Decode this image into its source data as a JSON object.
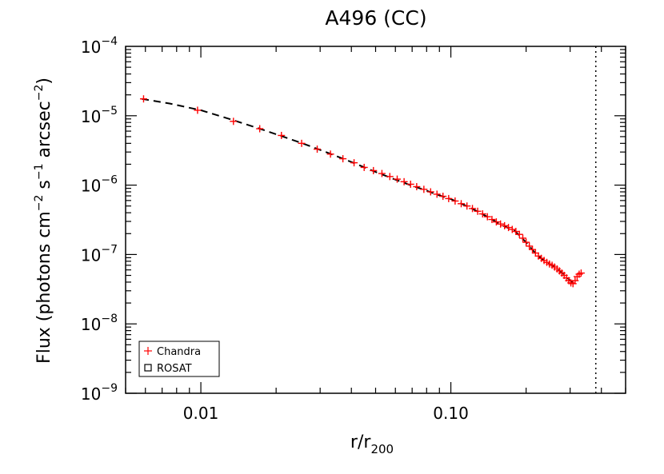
{
  "chart_data": {
    "type": "scatter",
    "title": "A496 (CC)",
    "xlabel": {
      "main": "r/r",
      "sub": "200"
    },
    "ylabel": {
      "parts": [
        {
          "t": "Flux (photons cm",
          "sup": false
        },
        {
          "t": "−2",
          "sup": true
        },
        {
          "t": " s",
          "sup": false
        },
        {
          "t": "−1",
          "sup": true
        },
        {
          "t": " arcsec",
          "sup": false
        },
        {
          "t": "−2",
          "sup": true
        },
        {
          "t": ")",
          "sup": false
        }
      ]
    },
    "x_scale": "log",
    "y_scale": "log",
    "xlim": [
      0.005,
      0.5
    ],
    "ylim": [
      1e-09,
      0.0001
    ],
    "x_ticks": [
      {
        "value": 0.01,
        "label": "0.01"
      },
      {
        "value": 0.1,
        "label": "0.10"
      }
    ],
    "y_ticks": [
      {
        "value": 1e-09,
        "base": "10",
        "exp": "−9"
      },
      {
        "value": 1e-08,
        "base": "10",
        "exp": "−8"
      },
      {
        "value": 1e-07,
        "base": "10",
        "exp": "−7"
      },
      {
        "value": 1e-06,
        "base": "10",
        "exp": "−6"
      },
      {
        "value": 1e-05,
        "base": "10",
        "exp": "−5"
      },
      {
        "value": 0.0001,
        "base": "10",
        "exp": "−4"
      }
    ],
    "vertical_line_x": 0.38,
    "colors": {
      "chandra": "#ff0000",
      "rosat": "#000000",
      "model": "#000000"
    },
    "legend": {
      "position": "bottom-left",
      "entries": [
        {
          "label": "Chandra",
          "marker": "plus",
          "color": "#ff0000"
        },
        {
          "label": "ROSAT",
          "marker": "square",
          "color": "#000000"
        }
      ]
    },
    "series": [
      {
        "name": "Chandra",
        "marker": "plus",
        "points": [
          [
            0.0059,
            1.75e-05
          ],
          [
            0.0097,
            1.2e-05
          ],
          [
            0.0135,
            8.3e-06
          ],
          [
            0.0172,
            6.5e-06
          ],
          [
            0.021,
            5.2e-06
          ],
          [
            0.0253,
            4e-06
          ],
          [
            0.0292,
            3.3e-06
          ],
          [
            0.033,
            2.8e-06
          ],
          [
            0.037,
            2.4e-06
          ],
          [
            0.041,
            2.1e-06
          ],
          [
            0.045,
            1.8e-06
          ],
          [
            0.049,
            1.62e-06
          ],
          [
            0.053,
            1.47e-06
          ],
          [
            0.057,
            1.33e-06
          ],
          [
            0.061,
            1.22e-06
          ],
          [
            0.065,
            1.12e-06
          ],
          [
            0.069,
            1.03e-06
          ],
          [
            0.073,
            9.5e-07
          ],
          [
            0.078,
            8.7e-07
          ],
          [
            0.083,
            8e-07
          ],
          [
            0.088,
            7.4e-07
          ],
          [
            0.093,
            6.9e-07
          ],
          [
            0.098,
            6.4e-07
          ],
          [
            0.104,
            5.9e-07
          ],
          [
            0.11,
            5.4e-07
          ],
          [
            0.116,
            5e-07
          ],
          [
            0.122,
            4.6e-07
          ],
          [
            0.128,
            4.2e-07
          ],
          [
            0.134,
            3.85e-07
          ],
          [
            0.14,
            3.5e-07
          ],
          [
            0.146,
            3.2e-07
          ],
          [
            0.152,
            2.95e-07
          ],
          [
            0.158,
            2.75e-07
          ],
          [
            0.164,
            2.6e-07
          ],
          [
            0.17,
            2.45e-07
          ],
          [
            0.176,
            2.3e-07
          ],
          [
            0.182,
            2.15e-07
          ],
          [
            0.188,
            1.95e-07
          ],
          [
            0.194,
            1.72e-07
          ],
          [
            0.2,
            1.5e-07
          ],
          [
            0.206,
            1.32e-07
          ],
          [
            0.212,
            1.18e-07
          ],
          [
            0.218,
            1.05e-07
          ],
          [
            0.224,
            9.5e-08
          ],
          [
            0.23,
            8.8e-08
          ],
          [
            0.236,
            8.2e-08
          ],
          [
            0.242,
            7.7e-08
          ],
          [
            0.248,
            7.3e-08
          ],
          [
            0.254,
            7e-08
          ],
          [
            0.26,
            6.6e-08
          ],
          [
            0.266,
            6.2e-08
          ],
          [
            0.272,
            5.8e-08
          ],
          [
            0.278,
            5.4e-08
          ],
          [
            0.284,
            5e-08
          ],
          [
            0.29,
            4.6e-08
          ],
          [
            0.296,
            4.2e-08
          ],
          [
            0.302,
            3.9e-08
          ],
          [
            0.308,
            3.8e-08
          ],
          [
            0.314,
            4.2e-08
          ],
          [
            0.32,
            4.8e-08
          ],
          [
            0.326,
            5.2e-08
          ],
          [
            0.332,
            5.4e-08
          ]
        ]
      },
      {
        "name": "model",
        "points": [
          [
            0.0058,
            1.75e-05
          ],
          [
            0.0075,
            1.5e-05
          ],
          [
            0.01,
            1.2e-05
          ],
          [
            0.013,
            9e-06
          ],
          [
            0.017,
            6.6e-06
          ],
          [
            0.021,
            5.1e-06
          ],
          [
            0.026,
            3.9e-06
          ],
          [
            0.032,
            2.95e-06
          ],
          [
            0.04,
            2.15e-06
          ],
          [
            0.05,
            1.55e-06
          ],
          [
            0.06,
            1.2e-06
          ],
          [
            0.07,
            9.8e-07
          ],
          [
            0.08,
            8.3e-07
          ],
          [
            0.09,
            7.1e-07
          ],
          [
            0.1,
            6.3e-07
          ],
          [
            0.12,
            4.7e-07
          ],
          [
            0.14,
            3.5e-07
          ],
          [
            0.16,
            2.65e-07
          ],
          [
            0.18,
            2.2e-07
          ],
          [
            0.2,
            1.5e-07
          ],
          [
            0.22,
            1e-07
          ],
          [
            0.24,
            7.8e-08
          ],
          [
            0.26,
            6.6e-08
          ],
          [
            0.28,
            5.4e-08
          ],
          [
            0.3,
            4.2e-08
          ],
          [
            0.31,
            3.8e-08
          ]
        ]
      }
    ]
  }
}
